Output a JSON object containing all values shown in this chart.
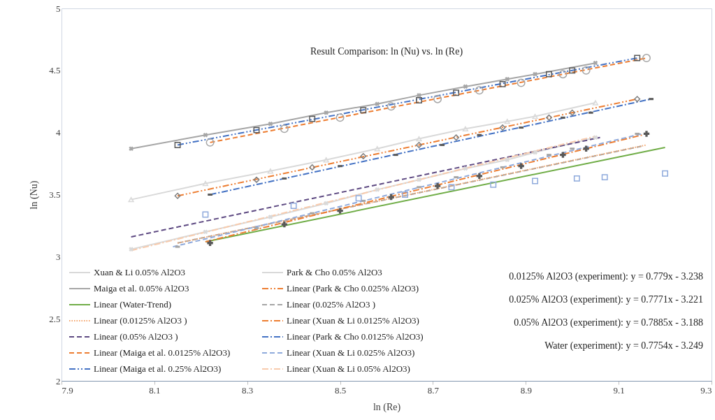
{
  "chart_data": {
    "type": "line",
    "title": "Result Comparison: ln (Nu) vs. ln (Re)",
    "xlabel": "ln (Re)",
    "ylabel": "ln (Nu)",
    "xlim": [
      7.9,
      9.3
    ],
    "xticks": [
      7.9,
      8.1,
      8.3,
      8.5,
      8.7,
      8.9,
      9.1,
      9.3
    ],
    "ylim": [
      2,
      5
    ],
    "yticks": [
      2,
      2.5,
      3,
      3.5,
      4,
      4.5,
      5
    ],
    "grid": false,
    "legend": "bottom left",
    "annotations": [
      "0.0125% Al2O3 (experiment): y = 0.779x - 3.238",
      "0.025% Al2O3 (experiment): y = 0.7771x - 3.221",
      "0.05% Al2O3 (experiment): y = 0.7885x - 3.188",
      "Water (experiment): y = 0.7754x - 3.249"
    ],
    "series": [
      {
        "name": "Xuan & Li 0.05% Al2O3",
        "type": "line",
        "color": "#d9d9d9",
        "marker": "x",
        "line_style": "solid",
        "x": [
          8.05,
          8.21,
          8.35,
          8.47,
          8.58,
          8.67,
          8.77,
          8.86,
          8.92,
          9.05
        ],
        "values": [
          3.06,
          3.2,
          3.32,
          3.43,
          3.54,
          3.62,
          3.71,
          3.78,
          3.84,
          3.96
        ]
      },
      {
        "name": "Park & Cho 0.05% Al2O3",
        "type": "line",
        "color": "#d9d9d9",
        "marker": "triangle",
        "line_style": "solid",
        "x": [
          8.05,
          8.21,
          8.35,
          8.47,
          8.58,
          8.67,
          8.77,
          8.86,
          8.92,
          9.05
        ],
        "values": [
          3.46,
          3.59,
          3.69,
          3.78,
          3.87,
          3.95,
          4.03,
          4.09,
          4.13,
          4.24
        ]
      },
      {
        "name": "Maiga et al. 0.05% Al2O3",
        "type": "line",
        "color": "#a6a6a6",
        "marker": "x",
        "line_style": "solid",
        "x": [
          8.05,
          8.21,
          8.35,
          8.47,
          8.58,
          8.67,
          8.77,
          8.86,
          8.92,
          9.05
        ],
        "values": [
          3.87,
          3.98,
          4.07,
          4.16,
          4.23,
          4.3,
          4.37,
          4.43,
          4.47,
          4.56
        ]
      },
      {
        "name": "Linear (Park & Cho 0.025% Al2O3)",
        "type": "line",
        "color": "#ed7d31",
        "line_style": "dashdotdot",
        "x": [
          8.15,
          9.14
        ],
        "values": [
          3.49,
          4.27
        ]
      },
      {
        "name": "Linear (Water-Trend)",
        "type": "line",
        "color": "#70ad47",
        "line_style": "solid",
        "x": [
          8.21,
          9.2
        ],
        "values": [
          3.12,
          3.88
        ]
      },
      {
        "name": "Linear (0.025% Al2O3 )",
        "type": "line",
        "color": "#a5a5a5",
        "line_style": "dashed",
        "x": [
          8.15,
          9.15
        ],
        "values": [
          3.11,
          3.89
        ]
      },
      {
        "name": "Linear (0.0125% Al2O3 )",
        "type": "line",
        "color": "#f4a46a",
        "line_style": "dotted",
        "x": [
          8.15,
          9.16
        ],
        "values": [
          3.11,
          3.9
        ]
      },
      {
        "name": "Linear (Xuan & Li 0.0125% Al2O3)",
        "type": "line",
        "color": "#ed7d31",
        "line_style": "dashdot",
        "x": [
          8.21,
          9.15
        ],
        "values": [
          3.12,
          3.98
        ]
      },
      {
        "name": "Linear (0.05% Al2O3 )",
        "type": "line",
        "color": "#5e4a82",
        "line_style": "dashed",
        "x": [
          8.05,
          9.06
        ],
        "values": [
          3.16,
          3.96
        ]
      },
      {
        "name": "Linear (Park & Cho 0.0125% Al2O3)",
        "type": "line",
        "color": "#4472c4",
        "line_style": "dashdot",
        "x": [
          8.22,
          9.17
        ],
        "values": [
          3.5,
          4.27
        ]
      },
      {
        "name": "Linear (Maiga et al. 0.0125% Al2O3)",
        "type": "line",
        "color": "#ed7d31",
        "line_style": "dashed",
        "x": [
          8.22,
          9.16
        ],
        "values": [
          3.92,
          4.6
        ]
      },
      {
        "name": "Linear (Xuan & Li 0.025% Al2O3)",
        "type": "line",
        "color": "#8faadc",
        "line_style": "dashed",
        "x": [
          8.14,
          9.15
        ],
        "values": [
          3.08,
          3.99
        ]
      },
      {
        "name": "Linear (Maiga et al. 0.25% Al2O3)",
        "type": "line",
        "color": "#4472c4",
        "line_style": "dashdotdot",
        "x": [
          8.15,
          9.14
        ],
        "values": [
          3.9,
          4.6
        ]
      },
      {
        "name": "Linear (Xuan & Li 0.05% Al2O3)",
        "type": "line",
        "color": "#f8cbad",
        "line_style": "dashdot",
        "x": [
          8.05,
          9.05
        ],
        "values": [
          3.05,
          3.97
        ]
      },
      {
        "type": "scatter",
        "color": "#595959",
        "marker": "square",
        "x": [
          8.15,
          8.32,
          8.44,
          8.55,
          8.67,
          8.75,
          8.85,
          8.95,
          9.0,
          9.14
        ],
        "values": [
          3.9,
          4.02,
          4.11,
          4.18,
          4.26,
          4.32,
          4.39,
          4.47,
          4.5,
          4.6
        ]
      },
      {
        "type": "scatter",
        "color": "#a5a5a5",
        "marker": "circle",
        "x": [
          8.22,
          8.38,
          8.5,
          8.61,
          8.71,
          8.8,
          8.89,
          8.98,
          9.03,
          9.16
        ],
        "values": [
          3.92,
          4.03,
          4.12,
          4.21,
          4.27,
          4.34,
          4.4,
          4.47,
          4.5,
          4.6
        ]
      },
      {
        "type": "scatter",
        "color": "#7f7f7f",
        "marker": "diamond",
        "x": [
          8.15,
          8.32,
          8.44,
          8.55,
          8.67,
          8.75,
          8.85,
          8.95,
          9.0,
          9.14
        ],
        "values": [
          3.49,
          3.62,
          3.72,
          3.81,
          3.9,
          3.96,
          4.04,
          4.12,
          4.16,
          4.27
        ]
      },
      {
        "type": "scatter",
        "color": "#595959",
        "marker": "rect",
        "x": [
          8.22,
          8.38,
          8.5,
          8.62,
          8.72,
          8.8,
          8.89,
          8.98,
          9.04,
          9.17
        ],
        "values": [
          3.5,
          3.63,
          3.73,
          3.82,
          3.9,
          3.98,
          4.04,
          4.12,
          4.16,
          4.27
        ]
      },
      {
        "type": "scatter",
        "color": "#595959",
        "marker": "plus",
        "x": [
          8.22,
          8.38,
          8.5,
          8.61,
          8.71,
          8.8,
          8.89,
          8.98,
          9.03,
          9.16
        ],
        "values": [
          3.11,
          3.26,
          3.37,
          3.48,
          3.57,
          3.65,
          3.73,
          3.82,
          3.87,
          3.99
        ]
      },
      {
        "type": "scatter",
        "color": "#a5a5a5",
        "marker": "rect",
        "x": [
          8.15,
          8.32,
          8.44,
          8.55,
          8.67,
          8.75,
          8.85,
          8.95,
          9.0,
          9.14
        ],
        "values": [
          3.08,
          3.23,
          3.35,
          3.45,
          3.56,
          3.64,
          3.72,
          3.82,
          3.87,
          3.99
        ]
      },
      {
        "type": "scatter",
        "color": "#8faadc",
        "marker": "square",
        "x": [
          8.21,
          8.4,
          8.54,
          8.64,
          8.74,
          8.83,
          8.92,
          9.01,
          9.07,
          9.2
        ],
        "values": [
          3.34,
          3.41,
          3.47,
          3.5,
          3.56,
          3.58,
          3.61,
          3.63,
          3.64,
          3.67
        ]
      }
    ]
  }
}
